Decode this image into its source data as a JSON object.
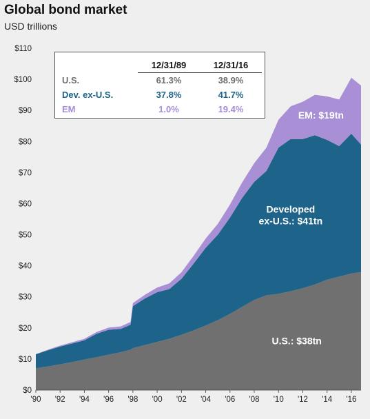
{
  "title": "Global bond market",
  "subtitle": "USD trillions",
  "colors": {
    "us": "#707070",
    "dev": "#1e6389",
    "em": "#a990d6",
    "us_text": "#6f6f6f",
    "dev_text": "#1e6389",
    "em_text": "#a48bd8"
  },
  "legend_table": {
    "headers": [
      "",
      "12/31/89",
      "12/31/16"
    ],
    "rows": [
      {
        "name": "U.S.",
        "v1989": "61.3%",
        "v2016": "38.9%",
        "color": "#6f6f6f"
      },
      {
        "name": "Dev. ex-U.S.",
        "v1989": "37.8%",
        "v2016": "41.7%",
        "color": "#1e6389"
      },
      {
        "name": "EM",
        "v1989": "1.0%",
        "v2016": "19.4%",
        "color": "#a48bd8"
      }
    ]
  },
  "chart_data": {
    "type": "area",
    "stacked": true,
    "title": "Global bond market",
    "subtitle": "USD trillions",
    "x": [
      1990,
      1991,
      1992,
      1993,
      1994,
      1995,
      1996,
      1997,
      1997.8,
      1998,
      1999,
      2000,
      2001,
      2002,
      2003,
      2004,
      2005,
      2006,
      2007,
      2008,
      2009,
      2010,
      2011,
      2012,
      2013,
      2014,
      2015,
      2016,
      2016.8
    ],
    "x_tick_labels": [
      "'90",
      "'92",
      "'94",
      "'96",
      "'98",
      "'00",
      "'02",
      "'04",
      "'06",
      "'08",
      "'10",
      "'12",
      "'14",
      "'16"
    ],
    "x_tick_values": [
      1990,
      1992,
      1994,
      1996,
      1998,
      2000,
      2002,
      2004,
      2006,
      2008,
      2010,
      2012,
      2014,
      2016
    ],
    "xlim": [
      1990,
      2016.8
    ],
    "ylim": [
      0,
      110
    ],
    "y_ticks": [
      0,
      10,
      20,
      30,
      40,
      50,
      60,
      70,
      80,
      90,
      100,
      110
    ],
    "y_tick_labels": [
      "$0",
      "$10",
      "$20",
      "$30",
      "$40",
      "$50",
      "$60",
      "$70",
      "$80",
      "$90",
      "$100",
      "$110"
    ],
    "series": [
      {
        "key": "us",
        "values": [
          7,
          7.6,
          8.3,
          9,
          9.8,
          10.6,
          11.4,
          12.2,
          13,
          13.5,
          14.5,
          15.5,
          16.5,
          17.8,
          19.2,
          20.8,
          22.5,
          24.5,
          26.8,
          29,
          30.5,
          31,
          31.8,
          32.8,
          34,
          35.5,
          36.5,
          37.5,
          38
        ]
      },
      {
        "key": "dev",
        "values": [
          4.5,
          5.2,
          5.7,
          6,
          6.2,
          7.5,
          8,
          7.5,
          8,
          13.5,
          15,
          16,
          16,
          18,
          21.5,
          25,
          27.5,
          31,
          35,
          38,
          40,
          47,
          49,
          48,
          48,
          45,
          42,
          45,
          41
        ]
      },
      {
        "key": "em",
        "values": [
          0.1,
          0.2,
          0.3,
          0.4,
          0.5,
          0.6,
          0.7,
          0.8,
          0.9,
          1,
          1.2,
          1.5,
          1.8,
          2.1,
          2.5,
          3,
          3.5,
          4.2,
          5,
          6,
          7.5,
          9,
          10.5,
          12,
          13,
          14,
          15,
          18,
          19
        ]
      }
    ],
    "area_labels": [
      {
        "key": "us",
        "lines": [
          "U.S.: $38tn"
        ]
      },
      {
        "key": "dev",
        "lines": [
          "Developed",
          "ex-U.S.: $41tn"
        ]
      },
      {
        "key": "em",
        "lines": [
          "EM: $19tn"
        ]
      }
    ]
  }
}
